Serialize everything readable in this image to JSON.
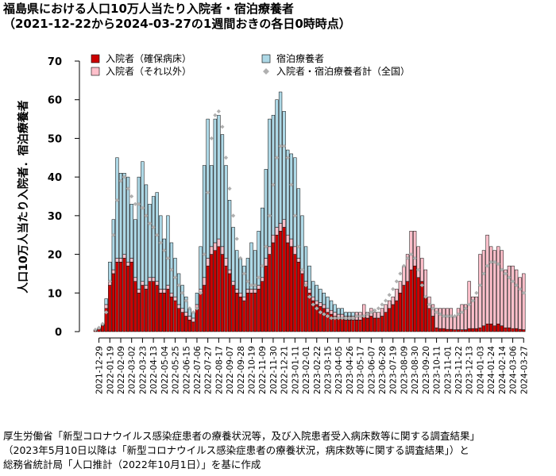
{
  "chart_data": {
    "type": "bar",
    "title": "福島県における人口10万人当たり入院者・宿泊療養者",
    "subtitle": "（2021-12-22から2024-03-27の1週間おきの各日0時時点）",
    "y_label": "人口10万人当たり入院者．宿泊療養者",
    "source": [
      "厚生労働省「新型コロナウイルス感染症患者の療養状況等，及び入院患者受入病床数等に関する調査結果」",
      "（2023年5月10日以降は「新型コロナウイルス感染症患者の療養状況，病床数等に関する調査結果」）と",
      "総務省統計局「人口推計（2022年10月1日）」を基に作成"
    ],
    "ylim": [
      0,
      70
    ],
    "yticks": [
      0,
      10,
      20,
      30,
      40,
      50,
      60,
      70
    ],
    "grid": false,
    "categories": [
      null,
      "2021-12-29",
      null,
      null,
      "2022-01-19",
      null,
      null,
      "2022-02-09",
      null,
      null,
      "2022-03-02",
      null,
      null,
      "2022-03-23",
      null,
      null,
      "2022-04-13",
      null,
      null,
      "2022-05-04",
      null,
      null,
      "2022-05-25",
      null,
      null,
      "2022-06-15",
      null,
      null,
      "2022-07-06",
      null,
      null,
      "2022-07-27",
      null,
      null,
      "2022-08-17",
      null,
      null,
      "2022-09-07",
      null,
      null,
      "2022-09-28",
      null,
      null,
      "2022-10-19",
      null,
      null,
      "2022-11-09",
      null,
      null,
      "2022-11-30",
      null,
      null,
      "2022-12-21",
      null,
      null,
      "2023-01-11",
      null,
      null,
      "2023-02-01",
      null,
      null,
      "2023-02-22",
      null,
      null,
      "2023-03-15",
      null,
      null,
      "2023-04-05",
      null,
      null,
      "2023-04-26",
      null,
      null,
      "2023-05-17",
      null,
      null,
      "2023-06-07",
      null,
      null,
      "2023-06-28",
      null,
      null,
      "2023-07-19",
      null,
      null,
      "2023-08-09",
      null,
      null,
      "2023-08-30",
      null,
      null,
      "2023-09-20",
      null,
      null,
      "2023-10-11",
      null,
      null,
      "2023-11-01",
      null,
      null,
      "2023-11-22",
      null,
      null,
      "2023-12-13",
      null,
      null,
      "2024-01-03",
      null,
      null,
      "2024-01-24",
      null,
      null,
      "2024-02-14",
      null,
      null,
      "2024-03-06",
      null,
      null,
      "2024-03-27"
    ],
    "series": [
      {
        "name": "入院者（確保病床）",
        "color": "#cc0000",
        "type": "bar",
        "values": [
          0.3,
          0.6,
          1.5,
          6,
          12,
          15,
          18,
          18,
          19,
          17,
          18,
          13,
          10,
          12,
          11,
          13,
          13,
          12,
          10,
          10,
          11,
          9,
          8,
          6,
          5,
          4,
          3,
          2.5,
          6,
          10,
          12,
          17,
          20,
          21,
          22,
          20,
          17,
          15,
          12,
          10,
          9,
          8,
          10,
          10,
          10,
          11,
          13,
          17,
          20,
          23,
          25,
          26,
          27,
          23,
          22,
          20,
          18,
          15,
          12,
          10,
          8,
          7,
          6.5,
          6,
          5,
          4.5,
          4,
          3.5,
          3.5,
          3,
          3,
          3,
          3,
          3,
          4,
          3.5,
          4,
          3.5,
          3.5,
          4,
          5,
          6,
          7,
          8,
          10,
          12,
          13,
          16,
          17,
          14,
          13,
          9,
          6,
          4,
          1,
          0.8,
          0.8,
          0.6,
          0.6,
          0.5,
          0.5,
          0.5,
          0.5,
          0.8,
          0.8,
          0.8,
          1,
          1.5,
          2,
          2,
          1.5,
          2,
          1.5,
          1,
          1,
          0.8,
          0.8,
          0.6,
          0.5
        ]
      },
      {
        "name": "入院者（それ以外）",
        "color": "#ffc0cb",
        "type": "bar",
        "values": [
          0,
          0,
          0.3,
          1,
          1,
          1,
          1,
          1,
          1,
          1,
          1,
          1,
          1,
          1,
          1,
          1,
          1,
          1,
          1,
          1,
          1,
          1,
          1,
          1,
          1,
          1,
          1,
          1,
          1,
          1,
          2,
          2,
          2,
          2,
          2,
          2,
          2,
          1,
          1,
          1,
          1,
          1,
          1,
          1,
          1,
          1,
          1,
          2,
          2,
          2,
          2,
          2,
          2,
          2,
          2,
          2,
          1,
          1,
          1,
          1,
          1,
          1,
          1,
          1,
          1,
          1,
          1,
          1,
          1,
          1,
          1,
          1,
          2,
          2,
          3,
          1.5,
          2,
          1.5,
          1.5,
          2,
          2,
          2,
          2,
          3,
          3,
          5,
          7,
          10,
          9,
          8,
          6,
          7,
          3,
          3,
          5,
          5.2,
          5.2,
          5.4,
          5.4,
          3.5,
          5.5,
          6.5,
          6.5,
          12.2,
          8.2,
          8.2,
          19,
          19.5,
          23,
          20,
          19.5,
          20,
          19.5,
          15,
          16,
          16.2,
          15.2,
          13.4,
          14.5
        ]
      },
      {
        "name": "宿泊療養者",
        "color": "#add8e6",
        "type": "bar",
        "values": [
          0.2,
          0.4,
          0.2,
          1.5,
          5,
          13,
          26,
          22,
          21,
          22,
          14,
          15,
          29,
          31,
          26,
          19,
          21,
          23,
          19,
          13,
          18,
          13,
          10,
          8,
          6,
          4,
          2,
          1.5,
          3,
          11,
          29,
          36,
          21,
          32,
          32,
          29,
          24,
          18,
          14,
          10,
          9,
          8,
          8,
          12,
          10,
          14,
          18,
          23,
          33,
          31,
          33,
          34,
          28,
          22,
          22,
          23,
          18,
          14,
          9,
          6,
          4,
          4,
          3.5,
          3,
          3,
          2.5,
          2,
          1.5,
          1.5,
          1,
          1,
          1,
          0,
          0,
          0,
          0,
          0,
          0,
          0,
          0,
          0,
          0,
          0,
          0,
          0,
          0,
          0,
          0,
          0,
          0,
          0,
          0,
          0,
          0,
          0,
          0,
          0,
          0,
          0,
          0,
          0,
          0,
          0,
          0,
          0,
          0,
          0,
          0,
          0,
          0,
          0,
          0,
          0,
          0,
          0,
          0,
          0,
          0,
          0
        ]
      },
      {
        "name": "入院者・宿泊療養者計（全国）",
        "color": "#b0b0b0",
        "type": "scatter",
        "values": [
          0.5,
          1,
          2,
          5,
          13,
          25,
          34,
          39,
          40,
          37,
          35,
          33,
          33,
          32,
          30,
          28,
          27,
          25,
          23,
          21,
          19,
          16,
          14,
          12,
          10,
          8,
          6,
          5,
          6,
          10,
          20,
          36,
          50,
          56,
          57,
          53,
          45,
          37,
          30,
          24,
          19,
          15,
          13,
          12,
          12,
          14,
          17,
          22,
          30,
          38,
          45,
          48,
          48,
          45,
          38,
          30,
          22,
          16,
          12,
          9,
          7,
          6,
          5,
          4.5,
          4,
          3.5,
          3.5,
          3.5,
          3.5,
          3.5,
          3.5,
          3.5,
          4,
          4,
          4,
          4.5,
          5,
          5.5,
          6,
          7,
          8,
          9.5,
          11,
          13,
          15,
          17,
          19,
          20,
          19,
          16,
          12,
          9,
          7,
          6,
          5,
          4.5,
          4,
          4,
          4,
          4,
          4.5,
          5,
          6,
          7,
          8,
          10,
          12,
          15,
          17,
          18,
          18,
          17.5,
          16,
          15,
          14,
          13,
          12,
          11,
          10
        ]
      }
    ]
  }
}
